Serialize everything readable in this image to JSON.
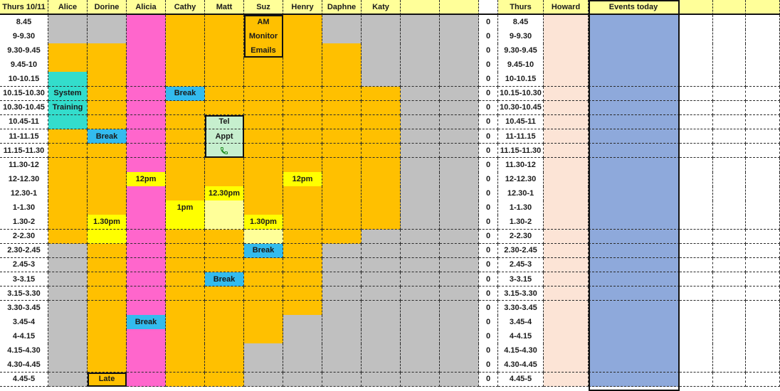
{
  "colors": {
    "orange": "#ffc000",
    "grey": "#c0c0c0",
    "pink": "#ff66cc",
    "blue": "#33bbee",
    "teal": "#33ddcc",
    "yellow": "#ffff00",
    "lightyellow": "#ffff99",
    "peach": "#fce4d6",
    "events": "#8ea9db",
    "white": "#ffffff",
    "green": "#c6efce"
  },
  "header": {
    "title": "Thurs 10/11",
    "staff": [
      "Alice",
      "Dorine",
      "Alicia",
      "Cathy",
      "Matt",
      "Suz",
      "Henry",
      "Daphne",
      "Katy"
    ],
    "thurs": "Thurs",
    "howard": "Howard",
    "events": "Events today"
  },
  "rows": [
    {
      "time": "8.45",
      "count": "0",
      "right": "8.45",
      "cells": [
        "g",
        "g",
        "p",
        "o",
        "o",
        {
          "c": "o",
          "t": "AM"
        },
        "o",
        "g",
        "g",
        "g",
        "g"
      ]
    },
    {
      "time": "9-9.30",
      "count": "0",
      "right": "9-9.30",
      "cells": [
        "g",
        "g",
        "p",
        "o",
        "o",
        {
          "c": "o",
          "t": "Monitor"
        },
        "o",
        "g",
        "g",
        "g",
        "g"
      ]
    },
    {
      "time": "9.30-9.45",
      "count": "0",
      "right": "9.30-9.45",
      "cells": [
        "o",
        "o",
        "p",
        "o",
        "o",
        {
          "c": "o",
          "t": "Emails"
        },
        "o",
        "o",
        "g",
        "g",
        "g"
      ]
    },
    {
      "time": "9.45-10",
      "count": "0",
      "right": "9.45-10",
      "cells": [
        "o",
        "o",
        "p",
        "o",
        "o",
        "o",
        "o",
        "o",
        "g",
        "g",
        "g"
      ]
    },
    {
      "time": "10-10.15",
      "count": "0",
      "right": "10-10.15",
      "cells": [
        "t",
        "o",
        "p",
        "o",
        "o",
        "o",
        "o",
        "o",
        "g",
        "g",
        "g"
      ]
    },
    {
      "time": "10.15-10.30",
      "count": "0",
      "right": "10.15-10.30",
      "cells": [
        {
          "c": "t",
          "t": "System"
        },
        "o",
        "p",
        {
          "c": "b",
          "t": "Break"
        },
        "o",
        "o",
        "o",
        "o",
        "o",
        "g",
        "g"
      ]
    },
    {
      "time": "10.30-10.45",
      "count": "0",
      "right": "10.30-10.45",
      "cells": [
        {
          "c": "t",
          "t": "Training"
        },
        "o",
        "p",
        "o",
        "o",
        "o",
        "o",
        "o",
        "o",
        "g",
        "g"
      ]
    },
    {
      "time": "10.45-11",
      "count": "0",
      "right": "10.45-11",
      "cells": [
        "t",
        "o",
        "p",
        "o",
        {
          "c": "gr",
          "t": "Tel"
        },
        "o",
        "o",
        "o",
        "o",
        "g",
        "g"
      ]
    },
    {
      "time": "11-11.15",
      "count": "0",
      "right": "11-11.15",
      "cells": [
        "o",
        {
          "c": "b",
          "t": "Break"
        },
        "p",
        "o",
        {
          "c": "gr",
          "t": "Appt"
        },
        "o",
        "o",
        "o",
        "o",
        "g",
        "g"
      ]
    },
    {
      "time": "11.15-11.30",
      "count": "0",
      "right": "11.15-11.30",
      "cells": [
        "o",
        "o",
        "p",
        "o",
        {
          "c": "gr",
          "t": "phone"
        },
        "o",
        "o",
        "o",
        "o",
        "g",
        "g"
      ]
    },
    {
      "time": "11.30-12",
      "count": "0",
      "right": "11.30-12",
      "cells": [
        "o",
        "o",
        "p",
        "o",
        "o",
        "o",
        "o",
        "o",
        "o",
        "g",
        "g"
      ]
    },
    {
      "time": "12-12.30",
      "count": "0",
      "right": "12-12.30",
      "cells": [
        "o",
        "o",
        {
          "c": "y",
          "t": "12pm"
        },
        "o",
        "o",
        "o",
        {
          "c": "y",
          "t": "12pm"
        },
        "o",
        "o",
        "g",
        "g"
      ]
    },
    {
      "time": "12.30-1",
      "count": "0",
      "right": "12.30-1",
      "cells": [
        "o",
        "o",
        "p",
        "o",
        {
          "c": "y",
          "t": "12.30pm"
        },
        "o",
        "o",
        "o",
        "o",
        "g",
        "g"
      ]
    },
    {
      "time": "1-1.30",
      "count": "0",
      "right": "1-1.30",
      "cells": [
        "o",
        "o",
        "p",
        {
          "c": "y",
          "t": "1pm"
        },
        "ly",
        "o",
        "o",
        "o",
        "o",
        "g",
        "g"
      ]
    },
    {
      "time": "1.30-2",
      "count": "0",
      "right": "1.30-2",
      "cells": [
        "o",
        {
          "c": "y",
          "t": "1.30pm"
        },
        "p",
        "y",
        "ly",
        {
          "c": "y",
          "t": "1.30pm"
        },
        "o",
        "o",
        "o",
        "g",
        "g"
      ]
    },
    {
      "time": "2-2.30",
      "count": "0",
      "right": "2-2.30",
      "cells": [
        "o",
        "y",
        "p",
        "o",
        "o",
        "ly",
        "o",
        "o",
        "g",
        "g",
        "g"
      ]
    },
    {
      "time": "2.30-2.45",
      "count": "0",
      "right": "2.30-2.45",
      "cells": [
        "g",
        "o",
        "p",
        "o",
        "o",
        {
          "c": "b",
          "t": "Break"
        },
        "o",
        "g",
        "g",
        "g",
        "g"
      ]
    },
    {
      "time": "2.45-3",
      "count": "0",
      "right": "2.45-3",
      "cells": [
        "g",
        "o",
        "p",
        "o",
        "o",
        "o",
        "o",
        "g",
        "g",
        "g",
        "g"
      ]
    },
    {
      "time": "3-3.15",
      "count": "0",
      "right": "3-3.15",
      "cells": [
        "g",
        "o",
        "p",
        "o",
        {
          "c": "b",
          "t": "Break"
        },
        "o",
        "o",
        "g",
        "g",
        "g",
        "g"
      ]
    },
    {
      "time": "3.15-3.30",
      "count": "0",
      "right": "3.15-3.30",
      "cells": [
        "g",
        "o",
        "p",
        "o",
        "o",
        "o",
        "o",
        "g",
        "g",
        "g",
        "g"
      ]
    },
    {
      "time": "3.30-3.45",
      "count": "0",
      "right": "3.30-3.45",
      "cells": [
        "g",
        "o",
        "p",
        "o",
        "o",
        "o",
        "o",
        "g",
        "g",
        "g",
        "g"
      ]
    },
    {
      "time": "3.45-4",
      "count": "0",
      "right": "3.45-4",
      "cells": [
        "g",
        "o",
        {
          "c": "b",
          "t": "Break"
        },
        "o",
        "o",
        "o",
        "g",
        "g",
        "g",
        "g",
        "g"
      ]
    },
    {
      "time": "4-4.15",
      "count": "0",
      "right": "4-4.15",
      "cells": [
        "g",
        "o",
        "p",
        "o",
        "o",
        "o",
        "g",
        "g",
        "g",
        "g",
        "g"
      ]
    },
    {
      "time": "4.15-4.30",
      "count": "0",
      "right": "4.15-4.30",
      "cells": [
        "g",
        "o",
        "p",
        "o",
        "o",
        "g",
        "g",
        "g",
        "g",
        "g",
        "g"
      ]
    },
    {
      "time": "4.30-4.45",
      "count": "0",
      "right": "4.30-4.45",
      "cells": [
        "g",
        "o",
        "p",
        "o",
        "o",
        "g",
        "g",
        "g",
        "g",
        "g",
        "g"
      ]
    },
    {
      "time": "4.45-5",
      "count": "0",
      "right": "4.45-5",
      "cells": [
        "g",
        {
          "c": "o",
          "t": "Late"
        },
        "p",
        "o",
        "o",
        "g",
        "g",
        "g",
        "g",
        "g",
        "g"
      ]
    }
  ]
}
